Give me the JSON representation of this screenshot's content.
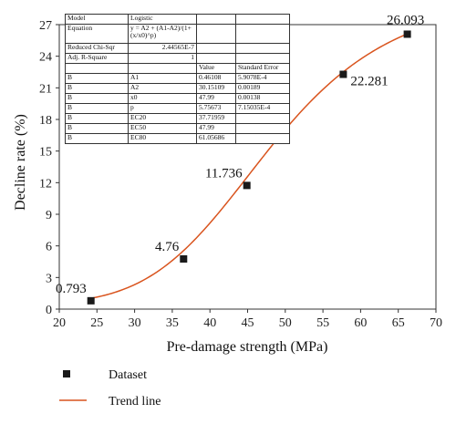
{
  "chart_data": {
    "type": "scatter",
    "xlabel": "Pre-damage strength (MPa)",
    "ylabel": "Decline rate (%)",
    "xlim": [
      20,
      70
    ],
    "ylim": [
      0,
      27
    ],
    "xticks": [
      "20",
      "25",
      "30",
      "35",
      "40",
      "45",
      "50",
      "55",
      "60",
      "65",
      "70"
    ],
    "yticks": [
      "0",
      "3",
      "6",
      "9",
      "12",
      "15",
      "18",
      "21",
      "24",
      "27"
    ],
    "grid": false,
    "legend_position": "bottom-left",
    "series": [
      {
        "name": "Dataset",
        "marker": "square",
        "color": "#1a1a1a",
        "points": [
          {
            "x": 24.2,
            "y": 0.793,
            "label": "0.793"
          },
          {
            "x": 36.5,
            "y": 4.76,
            "label": "4.76"
          },
          {
            "x": 44.9,
            "y": 11.736,
            "label": "11.736"
          },
          {
            "x": 57.7,
            "y": 22.281,
            "label": "22.281"
          },
          {
            "x": 66.2,
            "y": 26.093,
            "label": "26.093"
          }
        ]
      },
      {
        "name": "Trend line",
        "type": "line",
        "color": "#d9541e",
        "model": {
          "A1": 0.46108,
          "A2": 30.15109,
          "x0": 47.99,
          "p": 5.75673
        },
        "x_range": [
          24.2,
          66.2
        ]
      }
    ],
    "fit_table": {
      "model_label": "Model",
      "model_value": "Logistic",
      "equation_label": "Equation",
      "equation_value": "y = A2 + (A1-A2)/(1+ (x/x0)^p)",
      "chisqr_label": "Reduced Chi-Sqr",
      "chisqr_value": "2.44565E-7",
      "r2_label": "Adj. R-Square",
      "r2_value": "1",
      "col_value": "Value",
      "col_error": "Standard Error",
      "rows": [
        {
          "group": "B",
          "param": "A1",
          "value": "0.46108",
          "error": "5.9078E-4"
        },
        {
          "group": "B",
          "param": "A2",
          "value": "30.15109",
          "error": "0.00189"
        },
        {
          "group": "B",
          "param": "x0",
          "value": "47.99",
          "error": "0.00138"
        },
        {
          "group": "B",
          "param": "p",
          "value": "5.75673",
          "error": "7.15035E-4"
        },
        {
          "group": "B",
          "param": "EC20",
          "value": "37.71959",
          "error": ""
        },
        {
          "group": "B",
          "param": "EC50",
          "value": "47.99",
          "error": ""
        },
        {
          "group": "B",
          "param": "EC80",
          "value": "61.05686",
          "error": ""
        }
      ]
    }
  }
}
